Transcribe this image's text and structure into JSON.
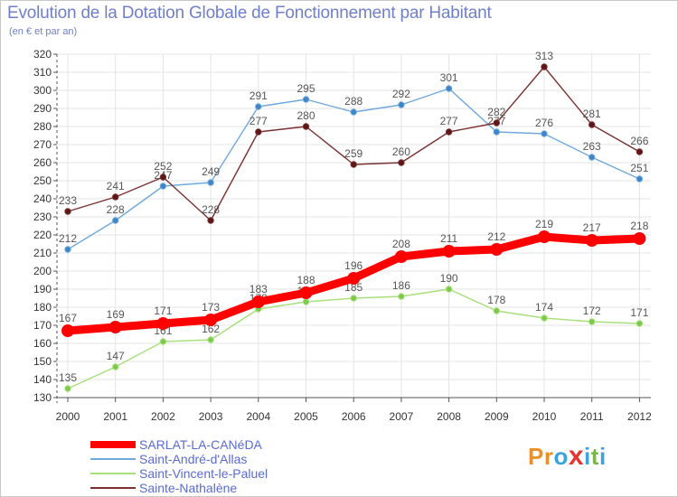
{
  "header": {
    "title": "Evolution de la Dotation Globale de Fonctionnement par Habitant",
    "subtitle": "(en € et par an)"
  },
  "brand": {
    "name": "Proxiti",
    "letters": [
      "P",
      "r",
      "o",
      "x",
      "i",
      "t",
      "i"
    ]
  },
  "colors": {
    "axis_text": "#333333",
    "grid": "#e4e4e4",
    "label": "#555555",
    "brand_letters": [
      "#e8912a",
      "#e8912a",
      "#3aa3dd",
      "#e3342f",
      "#3aa3dd",
      "#7ab648",
      "#3aa3dd"
    ]
  },
  "chart_data": {
    "type": "line",
    "title": "Evolution de la Dotation Globale de Fonctionnement par Habitant",
    "subtitle": "(en € et par an)",
    "xlabel": "",
    "ylabel": "",
    "categories": [
      "2000",
      "2001",
      "2002",
      "2003",
      "2004",
      "2005",
      "2006",
      "2007",
      "2008",
      "2009",
      "2010",
      "2011",
      "2012"
    ],
    "ylim": [
      130,
      320
    ],
    "yticks": [
      130,
      140,
      150,
      160,
      170,
      180,
      190,
      200,
      210,
      220,
      230,
      240,
      250,
      260,
      270,
      280,
      290,
      300,
      310,
      320
    ],
    "grid": true,
    "legend_position": "bottom-left",
    "series": [
      {
        "name": "SARLAT-LA-CANéDA",
        "color": "#ff0000",
        "marker": "#ff0000",
        "emphasis": true,
        "values": [
          167,
          169,
          171,
          173,
          183,
          188,
          196,
          208,
          211,
          212,
          219,
          217,
          218
        ]
      },
      {
        "name": "Saint-André-d'Allas",
        "color": "#6fa8dc",
        "marker": "#3d85c6",
        "emphasis": false,
        "values": [
          212,
          228,
          247,
          249,
          291,
          295,
          288,
          292,
          301,
          277,
          276,
          263,
          251
        ]
      },
      {
        "name": "Saint-Vincent-le-Paluel",
        "color": "#a7e07a",
        "marker": "#7cc84a",
        "emphasis": false,
        "values": [
          135,
          147,
          161,
          162,
          179,
          183,
          185,
          186,
          190,
          178,
          174,
          172,
          171
        ]
      },
      {
        "name": "Sainte-Nathalène",
        "color": "#7a3030",
        "marker": "#5c1616",
        "emphasis": false,
        "values": [
          233,
          241,
          252,
          228,
          277,
          280,
          259,
          260,
          277,
          282,
          313,
          281,
          266
        ]
      }
    ]
  }
}
